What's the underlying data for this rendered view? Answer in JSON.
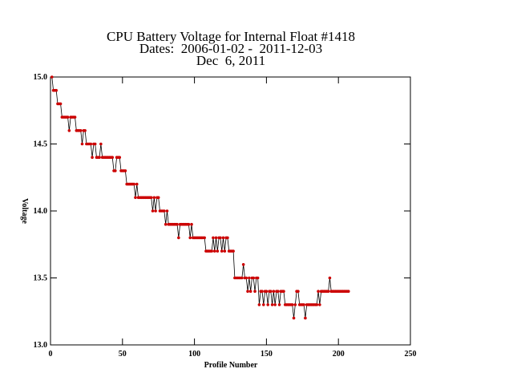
{
  "chart_data": {
    "type": "line",
    "title": [
      "CPU Battery Voltage for Internal Float #1418",
      "Dates:  2006-01-02 -  2011-12-03",
      "Dec  6, 2011"
    ],
    "x_label": "Profile Number",
    "y_label": "Voltage",
    "xlim": [
      0,
      250
    ],
    "xticks": [
      0,
      50,
      100,
      150,
      200,
      250
    ],
    "ylim": [
      13,
      15
    ],
    "yticks": [
      {
        "value": 13,
        "label": "13.0"
      },
      13.5,
      {
        "value": 14,
        "label": "14.0"
      },
      14.5,
      {
        "value": 15,
        "label": "15.0"
      }
    ],
    "series": [
      {
        "color": "#cc0000",
        "line_color": "#000000",
        "x": [
          1,
          2,
          3,
          4,
          5,
          6,
          7,
          8,
          9,
          10,
          11,
          12,
          13,
          14,
          15,
          16,
          17,
          18,
          19,
          20,
          21,
          22,
          23,
          24,
          25,
          26,
          27,
          28,
          29,
          30,
          31,
          32,
          33,
          34,
          35,
          36,
          37,
          38,
          39,
          40,
          41,
          42,
          43,
          44,
          45,
          46,
          47,
          48,
          49,
          50,
          51,
          52,
          53,
          54,
          55,
          56,
          57,
          58,
          59,
          60,
          61,
          62,
          63,
          64,
          65,
          66,
          67,
          68,
          69,
          70,
          71,
          72,
          73,
          74,
          75,
          76,
          77,
          78,
          79,
          80,
          81,
          82,
          83,
          84,
          85,
          86,
          87,
          88,
          89,
          90,
          91,
          92,
          93,
          94,
          95,
          96,
          97,
          98,
          99,
          100,
          101,
          102,
          103,
          104,
          105,
          106,
          107,
          108,
          109,
          110,
          111,
          112,
          113,
          114,
          115,
          116,
          117,
          118,
          119,
          120,
          121,
          122,
          123,
          124,
          125,
          126,
          127,
          128,
          129,
          130,
          131,
          132,
          133,
          134,
          135,
          136,
          137,
          138,
          139,
          140,
          141,
          142,
          143,
          144,
          145,
          146,
          147,
          148,
          149,
          150,
          151,
          152,
          153,
          154,
          155,
          156,
          157,
          158,
          159,
          160,
          161,
          162,
          163,
          164,
          165,
          166,
          167,
          168,
          169,
          170,
          171,
          172,
          173,
          174,
          175,
          176,
          177,
          178,
          179,
          180,
          181,
          182,
          183,
          184,
          185,
          186,
          187,
          188,
          189,
          190,
          191,
          192,
          193,
          194,
          195,
          196,
          197,
          198,
          199,
          200,
          201,
          202,
          203,
          204,
          205,
          206,
          207
        ],
        "values": [
          15.0,
          14.9,
          14.9,
          14.9,
          14.8,
          14.8,
          14.8,
          14.7,
          14.7,
          14.7,
          14.7,
          14.7,
          14.6,
          14.7,
          14.7,
          14.7,
          14.7,
          14.6,
          14.6,
          14.6,
          14.6,
          14.5,
          14.6,
          14.6,
          14.5,
          14.5,
          14.5,
          14.5,
          14.4,
          14.5,
          14.5,
          14.4,
          14.4,
          14.4,
          14.5,
          14.4,
          14.4,
          14.4,
          14.4,
          14.4,
          14.4,
          14.4,
          14.4,
          14.3,
          14.3,
          14.4,
          14.4,
          14.4,
          14.3,
          14.3,
          14.3,
          14.3,
          14.2,
          14.2,
          14.2,
          14.2,
          14.2,
          14.2,
          14.1,
          14.2,
          14.1,
          14.1,
          14.1,
          14.1,
          14.1,
          14.1,
          14.1,
          14.1,
          14.1,
          14.1,
          14.0,
          14.1,
          14.0,
          14.1,
          14.1,
          14.0,
          14.0,
          14.0,
          14.0,
          13.9,
          14.0,
          13.9,
          13.9,
          13.9,
          13.9,
          13.9,
          13.9,
          13.9,
          13.8,
          13.9,
          13.9,
          13.9,
          13.9,
          13.9,
          13.9,
          13.9,
          13.8,
          13.9,
          13.8,
          13.8,
          13.8,
          13.8,
          13.8,
          13.8,
          13.8,
          13.8,
          13.8,
          13.7,
          13.7,
          13.7,
          13.7,
          13.7,
          13.8,
          13.7,
          13.8,
          13.7,
          13.8,
          13.8,
          13.7,
          13.8,
          13.7,
          13.8,
          13.8,
          13.7,
          13.7,
          13.7,
          13.7,
          13.5,
          13.5,
          13.5,
          13.5,
          13.5,
          13.5,
          13.6,
          13.5,
          13.5,
          13.4,
          13.5,
          13.4,
          13.5,
          13.5,
          13.4,
          13.5,
          13.5,
          13.3,
          13.4,
          13.4,
          13.3,
          13.4,
          13.4,
          13.3,
          13.4,
          13.4,
          13.3,
          13.4,
          13.3,
          13.4,
          13.4,
          13.3,
          13.4,
          13.4,
          13.4,
          13.3,
          13.3,
          13.3,
          13.3,
          13.3,
          13.3,
          13.2,
          13.3,
          13.4,
          13.4,
          13.3,
          13.3,
          13.3,
          13.3,
          13.2,
          13.3,
          13.3,
          13.3,
          13.3,
          13.3,
          13.3,
          13.3,
          13.3,
          13.4,
          13.3,
          13.4,
          13.4,
          13.4,
          13.4,
          13.4,
          13.4,
          13.5,
          13.4,
          13.4,
          13.4,
          13.4,
          13.4,
          13.4,
          13.4,
          13.4,
          13.4,
          13.4,
          13.4,
          13.4,
          13.4
        ]
      }
    ]
  }
}
